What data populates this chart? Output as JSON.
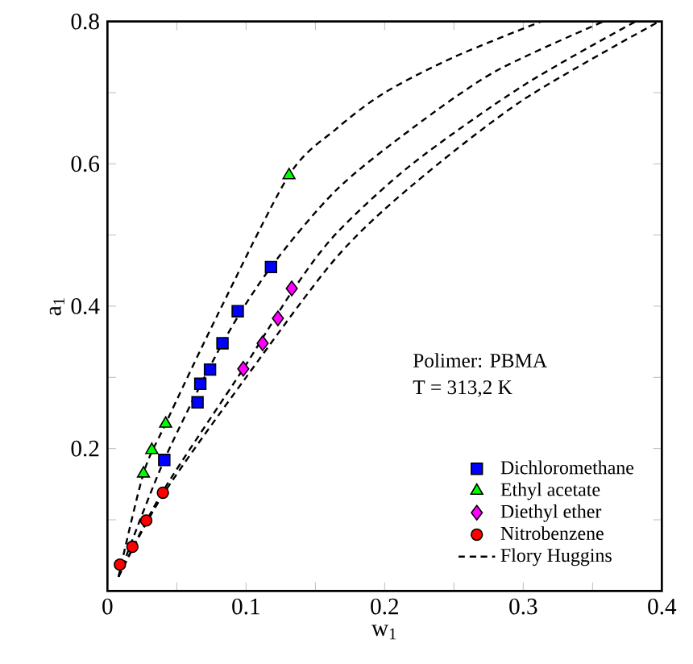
{
  "chart_data": {
    "type": "scatter",
    "xlabel": "w$_{1}$",
    "ylabel": "a$_{1}$",
    "annotations": [
      "Polimer: PBMA",
      "T = 313,2 K"
    ],
    "xlim": [
      0,
      0.4
    ],
    "ylim": [
      0,
      0.8
    ],
    "xticks": [
      {
        "value": 0,
        "label": "0"
      },
      {
        "value": 0.05,
        "label": null
      },
      0.1,
      {
        "value": 0.15,
        "label": null
      },
      0.2,
      {
        "value": 0.25,
        "label": null
      },
      0.3,
      {
        "value": 0.35,
        "label": null
      },
      0.4
    ],
    "yticks": [
      {
        "value": 0,
        "label": null
      },
      {
        "value": 0.1,
        "label": null
      },
      0.2,
      {
        "value": 0.3,
        "label": null
      },
      0.4,
      {
        "value": 0.5,
        "label": null
      },
      0.6,
      {
        "value": 0.7,
        "label": null
      },
      0.8
    ],
    "grid": false,
    "legend": "bottom right",
    "series": [
      {
        "name": "Dichloromethane",
        "marker": "square",
        "color": "#0000ff",
        "x": [
          0.041,
          0.065,
          0.067,
          0.074,
          0.083,
          0.094,
          0.118
        ],
        "values": [
          0.184,
          0.265,
          0.291,
          0.311,
          0.348,
          0.393,
          0.455
        ]
      },
      {
        "name": "Ethyl acetate",
        "marker": "triangle",
        "color": "#00ff00",
        "x": [
          0.026,
          0.032,
          0.042,
          0.131
        ],
        "values": [
          0.165,
          0.198,
          0.235,
          0.584
        ]
      },
      {
        "name": "Diethyl ether",
        "marker": "diamond",
        "color": "#ff00ff",
        "x": [
          0.098,
          0.112,
          0.123,
          0.133
        ],
        "values": [
          0.312,
          0.348,
          0.383,
          0.425
        ]
      },
      {
        "name": "Nitrobenzene",
        "marker": "circle",
        "color": "#ff0000",
        "x": [
          0.009,
          0.018,
          0.028,
          0.04
        ],
        "values": [
          0.037,
          0.062,
          0.099,
          0.138
        ]
      },
      {
        "name": "Flory Huggins",
        "type": "line",
        "line_style": "dashed",
        "marker": "none",
        "color": "#000000",
        "x": [
          0.008,
          0.026,
          0.042,
          0.08,
          0.131,
          0.165,
          0.2,
          0.25,
          0.313
        ],
        "values": [
          0.02,
          0.165,
          0.235,
          0.39,
          0.584,
          0.649,
          0.7,
          0.75,
          0.8
        ]
      },
      {
        "type": "line",
        "line_style": "dashed",
        "marker": "none",
        "color": "#000000",
        "x": [
          0.008,
          0.041,
          0.083,
          0.118,
          0.165,
          0.22,
          0.28,
          0.358
        ],
        "values": [
          0.02,
          0.184,
          0.348,
          0.455,
          0.563,
          0.65,
          0.73,
          0.8
        ]
      },
      {
        "type": "line",
        "line_style": "dashed",
        "marker": "none",
        "color": "#000000",
        "x": [
          0.008,
          0.04,
          0.098,
          0.133,
          0.165,
          0.22,
          0.3,
          0.381
        ],
        "values": [
          0.02,
          0.14,
          0.312,
          0.42,
          0.502,
          0.6,
          0.71,
          0.8
        ]
      },
      {
        "type": "line",
        "line_style": "dashed",
        "marker": "none",
        "color": "#000000",
        "x": [
          0.008,
          0.04,
          0.1,
          0.165,
          0.22,
          0.3,
          0.398
        ],
        "values": [
          0.02,
          0.135,
          0.3,
          0.468,
          0.57,
          0.69,
          0.8
        ]
      }
    ]
  }
}
